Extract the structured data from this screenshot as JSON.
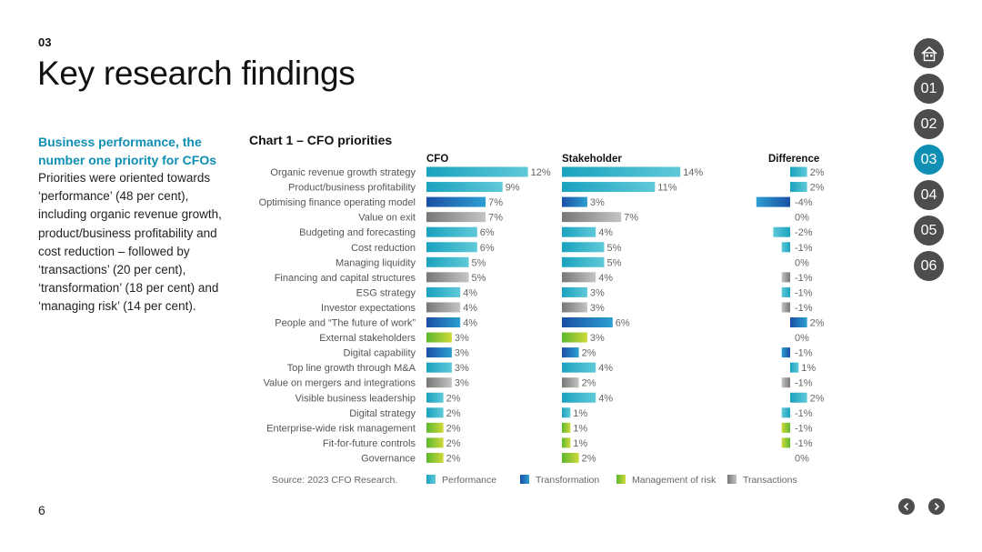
{
  "section_number": "03",
  "page_title": "Key research findings",
  "lead": {
    "heading": "Business performance, the number one priority for CFOs",
    "body": "Priorities were oriented towards ‘performance’ (48 per cent), including organic revenue growth, product/business profitability and cost reduction – followed by ‘transactions’ (20 per cent), ‘transformation’ (18 per cent) and ‘managing risk’ (14 per cent)."
  },
  "chart_title": "Chart 1 – CFO priorities",
  "source": "Source: 2023 CFO Research.",
  "page_number": "6",
  "nav": {
    "home_icon": "house-icon",
    "items": [
      "01",
      "02",
      "03",
      "04",
      "05",
      "06"
    ],
    "active": "03"
  },
  "colors": {
    "Performance": "#1aa2bf",
    "Transformation": "#1a4fa6",
    "Management of risk": "#5cb82e",
    "Transactions": "#777777",
    "accent": "#0e8fb3",
    "nav": "#4d4d4f"
  },
  "chart_data": {
    "type": "bar",
    "orientation": "horizontal",
    "columns": [
      "CFO",
      "Stakeholder",
      "Difference"
    ],
    "categories": [
      "Organic revenue growth strategy",
      "Product/business profitability",
      "Optimising finance operating model",
      "Value on exit",
      "Budgeting and forecasting",
      "Cost reduction",
      "Managing liquidity",
      "Financing and capital structures",
      "ESG strategy",
      "Investor expectations",
      "People and “The future of work”",
      "External stakeholders",
      "Digital capability",
      "Top line growth through M&A",
      "Value on mergers and integrations",
      "Visible business leadership",
      "Digital strategy",
      "Enterprise-wide risk management",
      "Fit-for-future controls",
      "Governance"
    ],
    "groups": [
      "Performance",
      "Performance",
      "Transformation",
      "Transactions",
      "Performance",
      "Performance",
      "Performance",
      "Transactions",
      "Performance",
      "Transactions",
      "Transformation",
      "Management of risk",
      "Transformation",
      "Performance",
      "Transactions",
      "Performance",
      "Performance",
      "Management of risk",
      "Management of risk",
      "Management of risk"
    ],
    "series": [
      {
        "name": "CFO",
        "values": [
          12,
          9,
          7,
          7,
          6,
          6,
          5,
          5,
          4,
          4,
          4,
          3,
          3,
          3,
          3,
          2,
          2,
          2,
          2,
          2
        ]
      },
      {
        "name": "Stakeholder",
        "values": [
          14,
          11,
          3,
          7,
          4,
          5,
          5,
          4,
          3,
          3,
          6,
          3,
          2,
          4,
          2,
          4,
          1,
          1,
          1,
          2
        ]
      },
      {
        "name": "Difference",
        "values": [
          2,
          2,
          -4,
          0,
          -2,
          -1,
          0,
          -1,
          -1,
          -1,
          2,
          0,
          -1,
          1,
          -1,
          2,
          -1,
          -1,
          -1,
          0
        ]
      }
    ],
    "value_suffix": "%",
    "legend": [
      "Performance",
      "Transformation",
      "Management of risk",
      "Transactions"
    ],
    "legend_position": "bottom"
  }
}
